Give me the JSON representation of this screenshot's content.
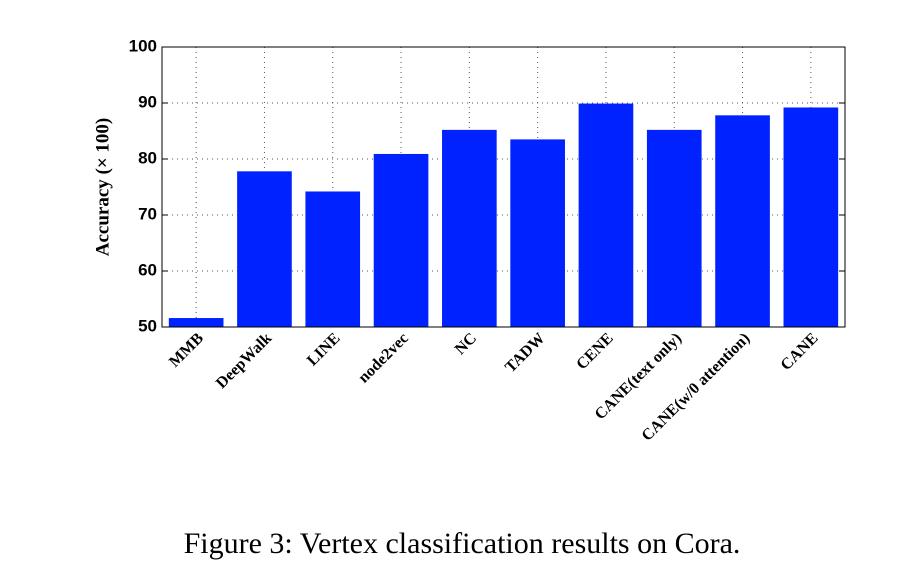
{
  "chart_data": {
    "type": "bar",
    "y_label": "Accuracy (× 100)",
    "categories": [
      "MMB",
      "DeepWalk",
      "LINE",
      "node2vec",
      "NC",
      "TADW",
      "CENE",
      "CANE(text only)",
      "CANE(w/0 attention)",
      "CANE"
    ],
    "values": [
      51.6,
      77.8,
      74.2,
      80.9,
      85.2,
      83.5,
      89.9,
      85.2,
      87.8,
      89.2
    ],
    "color": "#0022ff",
    "ylim": [
      50,
      100
    ],
    "yticks": [
      50,
      60,
      70,
      80,
      90,
      100
    ],
    "grid": true
  },
  "caption": "Figure 3: Vertex classification results on Cora."
}
